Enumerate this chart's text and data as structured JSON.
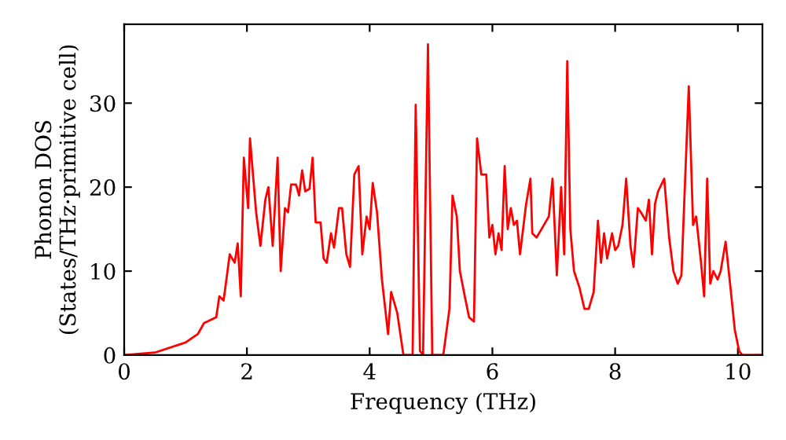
{
  "chart_data": {
    "type": "line",
    "xlabel": "Frequency (THz)",
    "ylabel": "Phonon DOS\n(States/THz·primitive cell)",
    "xlim": [
      0,
      10.4
    ],
    "ylim": [
      0,
      39.4
    ],
    "xticks": [
      0,
      2,
      4,
      6,
      8,
      10
    ],
    "yticks": [
      0,
      10,
      20,
      30
    ],
    "grid": false,
    "legend": false,
    "marker": "none",
    "line_style": "solid",
    "series": [
      {
        "color": "#ff0000",
        "x": [
          0,
          0.5,
          1.0,
          1.2,
          1.3,
          1.5,
          1.55,
          1.62,
          1.72,
          1.8,
          1.85,
          1.9,
          1.95,
          2.02,
          2.05,
          2.15,
          2.22,
          2.3,
          2.35,
          2.42,
          2.5,
          2.55,
          2.62,
          2.67,
          2.72,
          2.8,
          2.85,
          2.9,
          2.95,
          3.02,
          3.07,
          3.12,
          3.2,
          3.25,
          3.3,
          3.37,
          3.42,
          3.5,
          3.55,
          3.62,
          3.68,
          3.75,
          3.82,
          3.88,
          3.95,
          4.0,
          4.05,
          4.12,
          4.2,
          4.3,
          4.35,
          4.45,
          4.55,
          4.65,
          4.7,
          4.75,
          4.82,
          4.87,
          4.95,
          5.02,
          5.1,
          5.2,
          5.3,
          5.35,
          5.42,
          5.47,
          5.55,
          5.62,
          5.7,
          5.75,
          5.82,
          5.9,
          5.95,
          6.0,
          6.05,
          6.1,
          6.15,
          6.2,
          6.25,
          6.3,
          6.35,
          6.4,
          6.45,
          6.55,
          6.62,
          6.65,
          6.72,
          6.8,
          6.88,
          6.92,
          6.98,
          7.05,
          7.12,
          7.17,
          7.22,
          7.27,
          7.33,
          7.42,
          7.5,
          7.57,
          7.65,
          7.72,
          7.77,
          7.82,
          7.87,
          7.95,
          8.0,
          8.05,
          8.12,
          8.18,
          8.25,
          8.3,
          8.37,
          8.42,
          8.5,
          8.55,
          8.6,
          8.65,
          8.7,
          8.8,
          8.88,
          8.95,
          9.02,
          9.08,
          9.2,
          9.27,
          9.32,
          9.4,
          9.45,
          9.5,
          9.55,
          9.6,
          9.67,
          9.72,
          9.8,
          9.88,
          9.95,
          10.02,
          10.07,
          10.4
        ],
        "values": [
          0,
          0.3,
          1.5,
          2.5,
          3.8,
          4.5,
          7,
          6.5,
          12,
          11,
          13.3,
          7,
          23.5,
          17.5,
          25.8,
          17,
          13,
          18.5,
          20,
          13,
          23.5,
          10,
          17.5,
          17,
          20.3,
          20.3,
          19,
          22,
          19.5,
          19.8,
          23.5,
          15.8,
          15.8,
          11.5,
          11,
          14.5,
          12.8,
          17.5,
          17.5,
          12,
          10.5,
          21.5,
          22.5,
          12,
          16.5,
          15,
          20.5,
          17,
          9,
          2.5,
          7.5,
          5,
          0,
          0,
          0,
          29.8,
          0.5,
          0,
          37,
          0,
          0,
          0,
          5.5,
          19,
          16.5,
          10,
          7,
          4.5,
          4,
          25.8,
          21.5,
          21.5,
          14,
          15.5,
          12,
          14.5,
          12.5,
          22.5,
          15,
          17.5,
          15.5,
          16,
          12,
          18,
          21,
          14.5,
          14,
          15,
          16,
          16.5,
          21,
          9.5,
          20,
          12,
          35,
          15,
          10,
          8,
          5.5,
          5.5,
          7.5,
          16,
          11,
          14.5,
          11.5,
          14.5,
          12.5,
          13,
          15.5,
          21,
          13,
          10.5,
          17.5,
          17,
          16,
          18.5,
          12,
          18,
          19.5,
          21,
          14,
          10,
          8.5,
          9.5,
          32,
          15.5,
          16.5,
          11,
          7,
          21,
          8.5,
          10,
          9,
          10,
          13.5,
          8,
          3,
          0.5,
          0,
          0
        ]
      }
    ]
  }
}
